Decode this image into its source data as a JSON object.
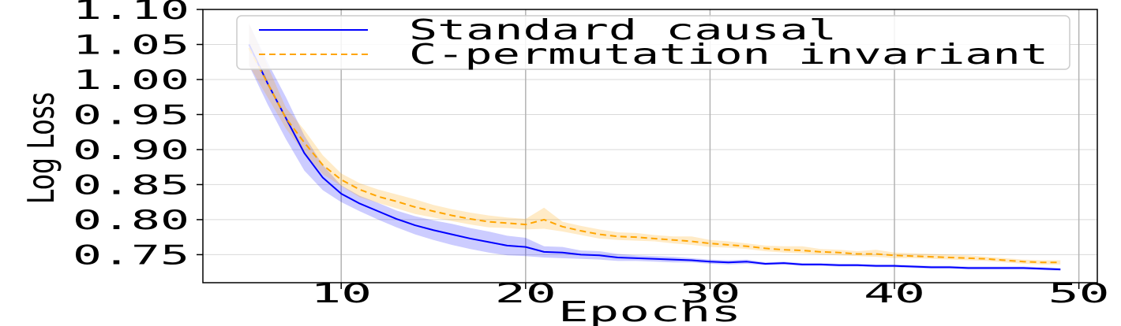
{
  "chart_data": {
    "type": "line",
    "xlabel": "Epochs",
    "ylabel": "Log Loss",
    "xlim": [
      2.5,
      51
    ],
    "ylim": [
      0.71,
      1.1
    ],
    "xticks": [
      10,
      20,
      30,
      40,
      50
    ],
    "yticks": [
      0.75,
      0.8,
      0.85,
      0.9,
      0.95,
      1.0,
      1.05,
      1.1
    ],
    "grid": true,
    "legend_position": "top",
    "series": [
      {
        "name": "Standard causal",
        "color": "#0000ff",
        "style": "solid",
        "x": [
          5,
          6,
          7,
          8,
          9,
          10,
          11,
          12,
          13,
          14,
          15,
          16,
          17,
          18,
          19,
          20,
          21,
          22,
          23,
          24,
          25,
          26,
          27,
          28,
          29,
          30,
          31,
          32,
          33,
          34,
          35,
          36,
          37,
          38,
          39,
          40,
          41,
          42,
          43,
          44,
          45,
          46,
          47,
          48,
          49
        ],
        "values": [
          1.05,
          0.995,
          0.945,
          0.895,
          0.86,
          0.837,
          0.823,
          0.812,
          0.801,
          0.792,
          0.785,
          0.779,
          0.773,
          0.768,
          0.763,
          0.761,
          0.754,
          0.753,
          0.75,
          0.749,
          0.746,
          0.745,
          0.744,
          0.743,
          0.742,
          0.74,
          0.739,
          0.74,
          0.737,
          0.738,
          0.736,
          0.736,
          0.735,
          0.735,
          0.734,
          0.734,
          0.733,
          0.732,
          0.732,
          0.731,
          0.731,
          0.731,
          0.731,
          0.73,
          0.729
        ],
        "band_low": [
          1.02,
          0.965,
          0.915,
          0.87,
          0.842,
          0.825,
          0.812,
          0.8,
          0.789,
          0.779,
          0.771,
          0.764,
          0.758,
          0.753,
          0.749,
          0.748,
          0.746,
          0.745,
          0.744,
          0.743,
          0.741,
          0.741,
          0.74,
          0.739,
          0.739,
          0.737,
          0.736,
          0.737,
          0.735,
          0.736,
          0.734,
          0.734,
          0.733,
          0.733,
          0.732,
          0.732,
          0.731,
          0.73,
          0.73,
          0.729,
          0.729,
          0.729,
          0.729,
          0.728,
          0.727
        ],
        "band_high": [
          1.08,
          1.025,
          0.975,
          0.92,
          0.878,
          0.849,
          0.834,
          0.824,
          0.813,
          0.805,
          0.799,
          0.794,
          0.788,
          0.783,
          0.777,
          0.774,
          0.762,
          0.761,
          0.756,
          0.755,
          0.751,
          0.749,
          0.748,
          0.747,
          0.745,
          0.743,
          0.742,
          0.743,
          0.739,
          0.74,
          0.738,
          0.738,
          0.737,
          0.737,
          0.736,
          0.736,
          0.735,
          0.734,
          0.734,
          0.733,
          0.733,
          0.733,
          0.733,
          0.732,
          0.731
        ]
      },
      {
        "name": "C-permutation invariant",
        "color": "#ffa500",
        "style": "dashed",
        "x": [
          5,
          6,
          7,
          8,
          9,
          10,
          11,
          12,
          13,
          14,
          15,
          16,
          17,
          18,
          19,
          20,
          21,
          22,
          23,
          24,
          25,
          26,
          27,
          28,
          29,
          30,
          31,
          32,
          33,
          34,
          35,
          36,
          37,
          38,
          39,
          40,
          41,
          42,
          43,
          44,
          45,
          46,
          47,
          48,
          49
        ],
        "values": [
          1.045,
          0.995,
          0.945,
          0.91,
          0.878,
          0.857,
          0.843,
          0.833,
          0.826,
          0.818,
          0.812,
          0.806,
          0.801,
          0.797,
          0.795,
          0.793,
          0.8,
          0.79,
          0.784,
          0.779,
          0.776,
          0.775,
          0.773,
          0.771,
          0.769,
          0.766,
          0.764,
          0.762,
          0.759,
          0.757,
          0.756,
          0.754,
          0.753,
          0.751,
          0.751,
          0.749,
          0.748,
          0.747,
          0.746,
          0.745,
          0.744,
          0.742,
          0.74,
          0.739,
          0.739
        ],
        "band_low": [
          1.02,
          0.975,
          0.93,
          0.895,
          0.865,
          0.848,
          0.832,
          0.824,
          0.816,
          0.808,
          0.803,
          0.798,
          0.793,
          0.789,
          0.788,
          0.786,
          0.787,
          0.783,
          0.778,
          0.773,
          0.771,
          0.77,
          0.769,
          0.766,
          0.764,
          0.761,
          0.76,
          0.758,
          0.755,
          0.753,
          0.752,
          0.75,
          0.749,
          0.748,
          0.747,
          0.745,
          0.745,
          0.744,
          0.743,
          0.742,
          0.741,
          0.739,
          0.737,
          0.736,
          0.736
        ],
        "band_high": [
          1.08,
          1.02,
          0.96,
          0.928,
          0.892,
          0.866,
          0.852,
          0.843,
          0.836,
          0.829,
          0.821,
          0.815,
          0.81,
          0.806,
          0.803,
          0.801,
          0.817,
          0.797,
          0.791,
          0.786,
          0.782,
          0.781,
          0.778,
          0.776,
          0.776,
          0.771,
          0.769,
          0.766,
          0.763,
          0.762,
          0.762,
          0.758,
          0.757,
          0.755,
          0.757,
          0.753,
          0.752,
          0.751,
          0.75,
          0.749,
          0.747,
          0.745,
          0.743,
          0.742,
          0.742
        ]
      }
    ]
  }
}
